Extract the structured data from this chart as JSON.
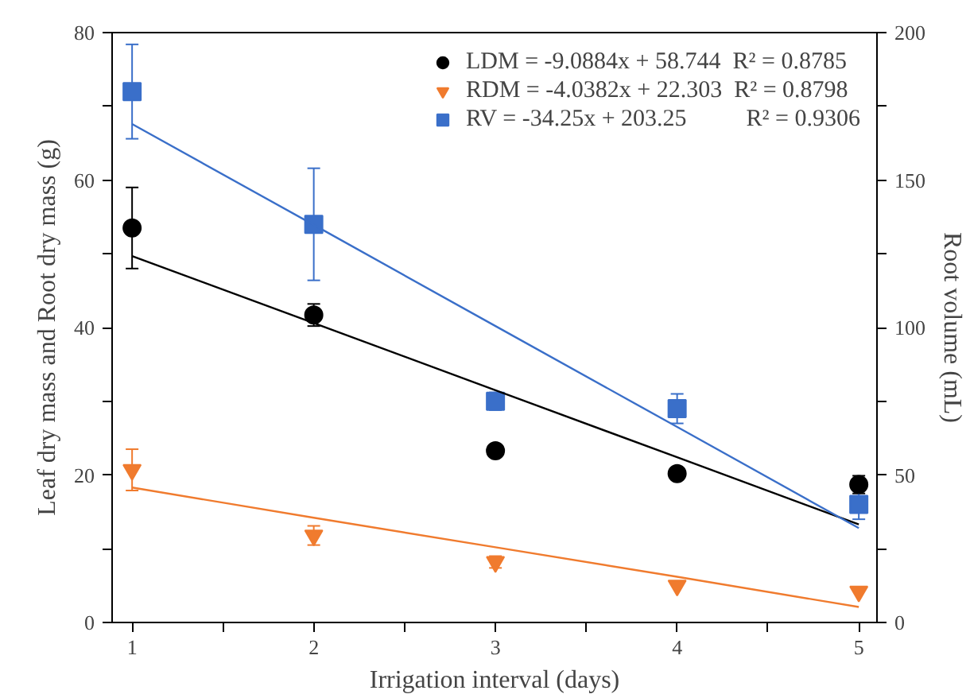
{
  "chart_data": {
    "type": "scatter",
    "xlabel": "Irrigation interval (days)",
    "ylabel": "Leaf dry mass and Root dry mass (g)",
    "y2label": "Root volume (mL)",
    "x": [
      1,
      2,
      3,
      4,
      5
    ],
    "series": [
      {
        "name": "LDM = -9.0884x + 58.744  R² = 0.8785",
        "color": "#000000",
        "marker": "circle",
        "values": [
          53.5,
          41.7,
          23.3,
          20.2,
          18.7
        ],
        "errors": [
          5.5,
          1.5,
          null,
          null,
          1.2
        ]
      },
      {
        "name": "RDM = -4.0382x + 22.303  R² = 0.8798",
        "color": "#f07b2e",
        "marker": "triangle",
        "values": [
          20.7,
          11.8,
          8.2,
          5.0,
          4.2
        ],
        "errors": [
          2.8,
          1.3,
          0.8,
          null,
          null
        ]
      },
      {
        "name": "RV = -34.25x + 203.25          R² = 0.9306",
        "color": "#3a6fc9",
        "marker": "square",
        "axis": "y2",
        "values": [
          180,
          135,
          75,
          72.5,
          40
        ],
        "errors": [
          16,
          19,
          3,
          5,
          5
        ]
      },
      {
        "type": "line",
        "color": "#000000",
        "values": [
          49.7,
          40.6,
          31.5,
          22.4,
          13.3
        ]
      },
      {
        "type": "line",
        "color": "#f07b2e",
        "values": [
          18.3,
          14.2,
          10.2,
          6.2,
          2.1
        ]
      },
      {
        "type": "line",
        "color": "#3a6fc9",
        "axis": "y2",
        "values": [
          169,
          134.8,
          100.5,
          66.3,
          32
        ]
      }
    ],
    "xlim": [
      0.89,
      5.1
    ],
    "ylim": [
      0,
      80
    ],
    "y2lim": [
      0,
      200
    ],
    "xticks": [
      1,
      {
        "value": 1.5,
        "label": null
      },
      2,
      {
        "value": 2.5,
        "label": null
      },
      3,
      {
        "value": 3.5,
        "label": null
      },
      4,
      {
        "value": 4.5,
        "label": null
      },
      5
    ],
    "yticks": [
      0,
      {
        "value": 10,
        "label": null
      },
      20,
      {
        "value": 30,
        "label": null
      },
      40,
      {
        "value": 50,
        "label": null
      },
      60,
      {
        "value": 70,
        "label": null
      },
      80
    ],
    "y2ticks": [
      0,
      {
        "value": 25,
        "label": null
      },
      50,
      {
        "value": 75,
        "label": null
      },
      100,
      {
        "value": 125,
        "label": null
      },
      150,
      {
        "value": 175,
        "label": null
      },
      200
    ],
    "grid": false,
    "legend": "top right"
  }
}
